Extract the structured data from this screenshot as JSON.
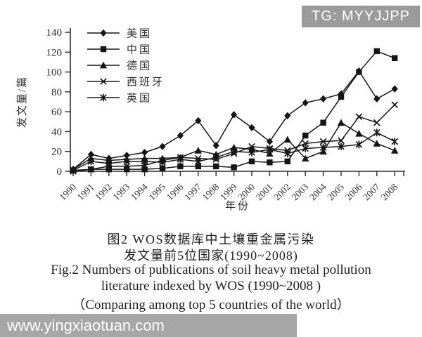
{
  "badge": {
    "text": "TG: MYYJJPP"
  },
  "watermark": {
    "text": "www.yingxiaotuan.com"
  },
  "caption": {
    "cn_line1": "图2 WOS数据库中土壤重金属污染",
    "cn_line2": "发文量前5位国家(1990~2008)",
    "en_line1": "Fig.2 Numbers of publications of soil heavy metal pollution",
    "en_line2": "literature indexed by WOS (1990~2008 )",
    "en_line3": "（Comparing among top 5 countries of the world）"
  },
  "chart_data": {
    "type": "line",
    "xlabel": "年份",
    "ylabel": "发文量/篇",
    "ylim": [
      0,
      140
    ],
    "yticks": [
      0,
      20,
      40,
      60,
      80,
      100,
      120,
      140
    ],
    "grid": false,
    "legend_position": "top-left-inside",
    "line_color": "#151515",
    "x": [
      1990,
      1991,
      1992,
      1993,
      1994,
      1995,
      1996,
      1997,
      1998,
      1999,
      2000,
      2001,
      2002,
      2003,
      2004,
      2005,
      2006,
      2007,
      2008
    ],
    "series": [
      {
        "name": "美国",
        "marker": "diamond",
        "values": [
          2,
          17,
          13,
          16,
          19,
          25,
          36,
          51,
          26,
          57,
          44,
          30,
          56,
          69,
          73,
          78,
          101,
          73,
          83
        ]
      },
      {
        "name": "中国",
        "marker": "square",
        "values": [
          1,
          2,
          2,
          2,
          2,
          3,
          5,
          5,
          5,
          4,
          10,
          9,
          10,
          36,
          49,
          75,
          100,
          121,
          114
        ]
      },
      {
        "name": "德国",
        "marker": "triangle",
        "values": [
          2,
          13,
          11,
          12,
          13,
          13,
          14,
          21,
          17,
          24,
          22,
          18,
          32,
          13,
          20,
          49,
          38,
          28,
          21
        ]
      },
      {
        "name": "西班牙",
        "marker": "x",
        "values": [
          0,
          2,
          5,
          5,
          6,
          11,
          14,
          13,
          12,
          18,
          25,
          23,
          21,
          28,
          30,
          31,
          55,
          49,
          67
        ]
      },
      {
        "name": "英国",
        "marker": "asterisk",
        "values": [
          1,
          10,
          8,
          10,
          10,
          9,
          12,
          10,
          14,
          20,
          19,
          22,
          18,
          23,
          24,
          25,
          27,
          39,
          30
        ]
      }
    ]
  }
}
